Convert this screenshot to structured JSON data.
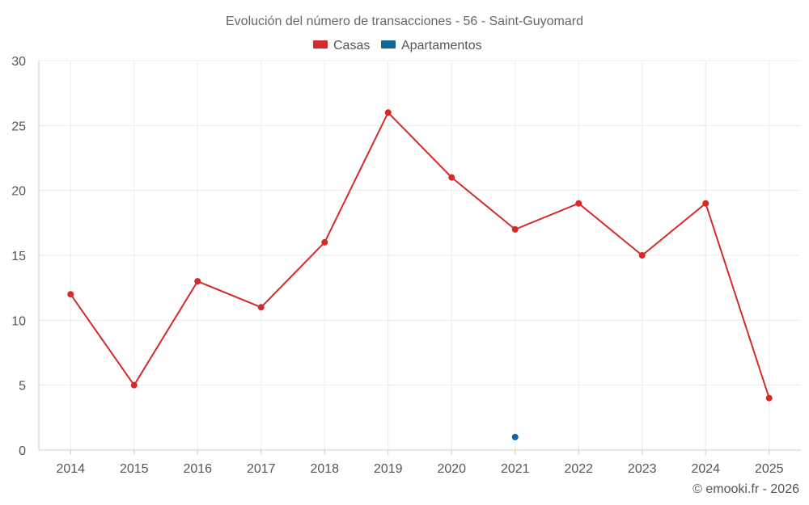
{
  "chart_data": {
    "type": "line",
    "title": "Evolución del número de transacciones - 56 - Saint-Guyomard",
    "categories": [
      "2014",
      "2015",
      "2016",
      "2017",
      "2018",
      "2019",
      "2020",
      "2021",
      "2022",
      "2023",
      "2024",
      "2025"
    ],
    "series": [
      {
        "name": "Casas",
        "color": "#d42a2a",
        "values": [
          12,
          5,
          13,
          11,
          16,
          26,
          21,
          17,
          19,
          15,
          19,
          4
        ]
      },
      {
        "name": "Apartamentos",
        "color": "#0e6796",
        "values": [
          null,
          null,
          null,
          null,
          null,
          null,
          null,
          1,
          null,
          null,
          null,
          null
        ]
      }
    ],
    "ylim": [
      0,
      30
    ],
    "yticks": [
      "0",
      "5",
      "10",
      "15",
      "20",
      "25",
      "30"
    ],
    "xlabel": "",
    "ylabel": "",
    "grid": true,
    "legend": "top-center"
  },
  "credit": "© emooki.fr - 2026"
}
